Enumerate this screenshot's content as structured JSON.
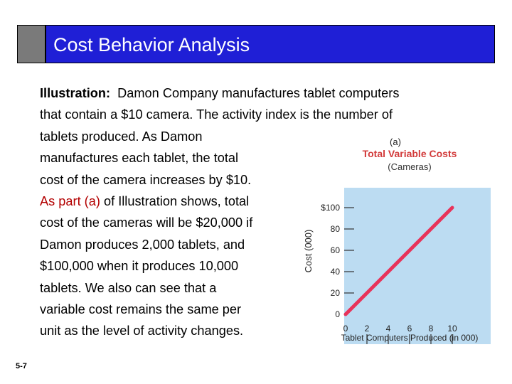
{
  "slide": {
    "title": "Cost Behavior Analysis",
    "number": "5-7",
    "paragraph": {
      "label": "Illustration:",
      "line1_rest": "Damon Company manufactures tablet computers",
      "line2": "that contain a $10 camera. The activity index is the number of",
      "line3": "tablets produced. As Damon",
      "line4": "manufactures each tablet, the total",
      "line5": "cost of the camera increases by $10.",
      "line6_highlight": "As part (a)",
      "line6_rest": "of Illustration shows, total",
      "line7": "cost of the cameras will be $20,000 if",
      "line8": "Damon produces 2,000 tablets, and",
      "line9": "$100,000 when it produces 10,000",
      "line10": "tablets. We also can see that a",
      "line11": "variable cost remains the same per",
      "line12": "unit as the level of activity changes."
    }
  },
  "colors": {
    "title_bar": "#1f1fd6",
    "title_tab": "#7a7a7a",
    "highlight_text": "#b30000",
    "plot_bg": "#bcdcf2",
    "line": "#e8335a",
    "chart_title": "#d23a3a"
  },
  "chart_data": {
    "type": "line",
    "part_label": "(a)",
    "title": "Total Variable Costs",
    "subtitle": "(Cameras)",
    "xlabel": "Tablet Computers Produced (in 000)",
    "ylabel": "Cost (000)",
    "x": [
      0,
      10
    ],
    "y": [
      0,
      100
    ],
    "xlim": [
      0,
      10
    ],
    "ylim": [
      0,
      100
    ],
    "x_ticks": [
      "0",
      "2",
      "4",
      "6",
      "8",
      "10"
    ],
    "y_ticks": [
      "0",
      "20",
      "40",
      "60",
      "80",
      "$100"
    ],
    "grid": false
  }
}
